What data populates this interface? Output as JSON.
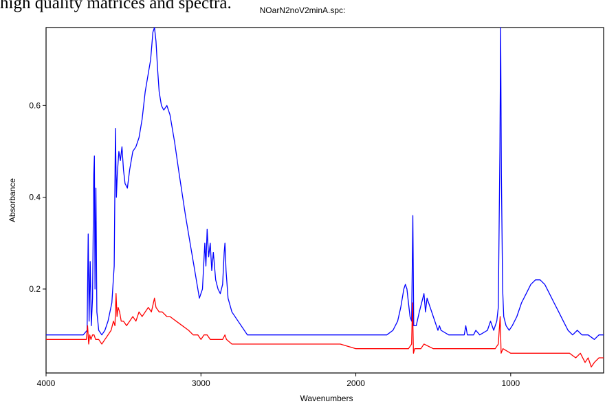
{
  "page": {
    "top_text": "high quality matrices and spectra."
  },
  "chart_data": {
    "type": "line",
    "title": "NOarN2noV2minA.spc:",
    "xlabel": "Wavenumbers",
    "ylabel": "Absorbance",
    "xlim": [
      4000,
      400
    ],
    "ylim": [
      0.017,
      0.77
    ],
    "x_ticks": [
      4000,
      3000,
      2000,
      1000
    ],
    "y_ticks": [
      0.2,
      0.4,
      0.6
    ],
    "x_tick_labels": [
      "4000",
      "3000",
      "2000",
      "1000"
    ],
    "y_tick_labels": [
      "0.2",
      "0.4",
      "0.6"
    ],
    "grid": false,
    "series": [
      {
        "color": "#0000ff",
        "points": [
          [
            4000,
            0.1
          ],
          [
            3850,
            0.1
          ],
          [
            3760,
            0.1
          ],
          [
            3735,
            0.11
          ],
          [
            3728,
            0.32
          ],
          [
            3722,
            0.13
          ],
          [
            3715,
            0.26
          ],
          [
            3708,
            0.12
          ],
          [
            3700,
            0.18
          ],
          [
            3692,
            0.45
          ],
          [
            3688,
            0.49
          ],
          [
            3684,
            0.2
          ],
          [
            3678,
            0.42
          ],
          [
            3672,
            0.15
          ],
          [
            3660,
            0.11
          ],
          [
            3640,
            0.1
          ],
          [
            3620,
            0.11
          ],
          [
            3600,
            0.13
          ],
          [
            3575,
            0.17
          ],
          [
            3560,
            0.25
          ],
          [
            3552,
            0.55
          ],
          [
            3546,
            0.4
          ],
          [
            3540,
            0.45
          ],
          [
            3530,
            0.5
          ],
          [
            3520,
            0.48
          ],
          [
            3510,
            0.51
          ],
          [
            3500,
            0.46
          ],
          [
            3490,
            0.43
          ],
          [
            3475,
            0.42
          ],
          [
            3460,
            0.46
          ],
          [
            3440,
            0.5
          ],
          [
            3420,
            0.51
          ],
          [
            3400,
            0.53
          ],
          [
            3380,
            0.57
          ],
          [
            3360,
            0.63
          ],
          [
            3340,
            0.67
          ],
          [
            3325,
            0.7
          ],
          [
            3310,
            0.76
          ],
          [
            3300,
            0.77
          ],
          [
            3290,
            0.74
          ],
          [
            3280,
            0.68
          ],
          [
            3270,
            0.63
          ],
          [
            3255,
            0.6
          ],
          [
            3240,
            0.59
          ],
          [
            3220,
            0.6
          ],
          [
            3200,
            0.58
          ],
          [
            3170,
            0.52
          ],
          [
            3140,
            0.45
          ],
          [
            3100,
            0.36
          ],
          [
            3070,
            0.3
          ],
          [
            3040,
            0.24
          ],
          [
            3010,
            0.18
          ],
          [
            2990,
            0.2
          ],
          [
            2975,
            0.3
          ],
          [
            2968,
            0.25
          ],
          [
            2960,
            0.33
          ],
          [
            2950,
            0.27
          ],
          [
            2940,
            0.3
          ],
          [
            2930,
            0.24
          ],
          [
            2920,
            0.28
          ],
          [
            2905,
            0.22
          ],
          [
            2890,
            0.2
          ],
          [
            2875,
            0.19
          ],
          [
            2860,
            0.21
          ],
          [
            2850,
            0.28
          ],
          [
            2845,
            0.3
          ],
          [
            2838,
            0.24
          ],
          [
            2825,
            0.18
          ],
          [
            2800,
            0.15
          ],
          [
            2760,
            0.13
          ],
          [
            2700,
            0.1
          ],
          [
            2600,
            0.1
          ],
          [
            2500,
            0.1
          ],
          [
            2400,
            0.1
          ],
          [
            2300,
            0.1
          ],
          [
            2200,
            0.1
          ],
          [
            2100,
            0.1
          ],
          [
            2000,
            0.1
          ],
          [
            1900,
            0.1
          ],
          [
            1800,
            0.1
          ],
          [
            1760,
            0.11
          ],
          [
            1730,
            0.13
          ],
          [
            1710,
            0.16
          ],
          [
            1690,
            0.2
          ],
          [
            1680,
            0.21
          ],
          [
            1670,
            0.2
          ],
          [
            1660,
            0.17
          ],
          [
            1650,
            0.14
          ],
          [
            1640,
            0.13
          ],
          [
            1632,
            0.36
          ],
          [
            1626,
            0.12
          ],
          [
            1610,
            0.12
          ],
          [
            1590,
            0.15
          ],
          [
            1560,
            0.19
          ],
          [
            1550,
            0.15
          ],
          [
            1540,
            0.18
          ],
          [
            1520,
            0.16
          ],
          [
            1500,
            0.14
          ],
          [
            1480,
            0.12
          ],
          [
            1470,
            0.11
          ],
          [
            1460,
            0.12
          ],
          [
            1450,
            0.11
          ],
          [
            1400,
            0.1
          ],
          [
            1300,
            0.1
          ],
          [
            1290,
            0.12
          ],
          [
            1280,
            0.1
          ],
          [
            1260,
            0.1
          ],
          [
            1240,
            0.1
          ],
          [
            1225,
            0.11
          ],
          [
            1200,
            0.1
          ],
          [
            1150,
            0.11
          ],
          [
            1130,
            0.13
          ],
          [
            1110,
            0.11
          ],
          [
            1090,
            0.13
          ],
          [
            1080,
            0.16
          ],
          [
            1070,
            0.5
          ],
          [
            1065,
            0.77
          ],
          [
            1060,
            0.45
          ],
          [
            1052,
            0.2
          ],
          [
            1045,
            0.14
          ],
          [
            1030,
            0.12
          ],
          [
            1010,
            0.11
          ],
          [
            990,
            0.12
          ],
          [
            960,
            0.14
          ],
          [
            930,
            0.17
          ],
          [
            900,
            0.19
          ],
          [
            870,
            0.21
          ],
          [
            840,
            0.22
          ],
          [
            810,
            0.22
          ],
          [
            780,
            0.21
          ],
          [
            750,
            0.19
          ],
          [
            720,
            0.17
          ],
          [
            690,
            0.15
          ],
          [
            660,
            0.13
          ],
          [
            630,
            0.11
          ],
          [
            600,
            0.1
          ],
          [
            570,
            0.11
          ],
          [
            540,
            0.1
          ],
          [
            500,
            0.1
          ],
          [
            460,
            0.09
          ],
          [
            430,
            0.1
          ],
          [
            400,
            0.1
          ]
        ]
      },
      {
        "color": "#ff0000",
        "points": [
          [
            4000,
            0.09
          ],
          [
            3850,
            0.09
          ],
          [
            3760,
            0.09
          ],
          [
            3740,
            0.09
          ],
          [
            3732,
            0.12
          ],
          [
            3725,
            0.08
          ],
          [
            3718,
            0.1
          ],
          [
            3710,
            0.09
          ],
          [
            3700,
            0.1
          ],
          [
            3690,
            0.1
          ],
          [
            3680,
            0.09
          ],
          [
            3660,
            0.09
          ],
          [
            3640,
            0.08
          ],
          [
            3620,
            0.09
          ],
          [
            3600,
            0.1
          ],
          [
            3580,
            0.11
          ],
          [
            3565,
            0.13
          ],
          [
            3555,
            0.12
          ],
          [
            3548,
            0.19
          ],
          [
            3542,
            0.14
          ],
          [
            3535,
            0.16
          ],
          [
            3525,
            0.15
          ],
          [
            3515,
            0.13
          ],
          [
            3500,
            0.13
          ],
          [
            3480,
            0.12
          ],
          [
            3460,
            0.13
          ],
          [
            3440,
            0.14
          ],
          [
            3420,
            0.13
          ],
          [
            3400,
            0.15
          ],
          [
            3380,
            0.14
          ],
          [
            3360,
            0.15
          ],
          [
            3340,
            0.16
          ],
          [
            3320,
            0.15
          ],
          [
            3300,
            0.18
          ],
          [
            3290,
            0.16
          ],
          [
            3270,
            0.15
          ],
          [
            3250,
            0.15
          ],
          [
            3220,
            0.14
          ],
          [
            3200,
            0.14
          ],
          [
            3160,
            0.13
          ],
          [
            3120,
            0.12
          ],
          [
            3080,
            0.11
          ],
          [
            3050,
            0.1
          ],
          [
            3020,
            0.1
          ],
          [
            3000,
            0.09
          ],
          [
            2980,
            0.1
          ],
          [
            2960,
            0.1
          ],
          [
            2940,
            0.09
          ],
          [
            2920,
            0.09
          ],
          [
            2900,
            0.09
          ],
          [
            2860,
            0.09
          ],
          [
            2845,
            0.1
          ],
          [
            2835,
            0.09
          ],
          [
            2800,
            0.08
          ],
          [
            2700,
            0.08
          ],
          [
            2600,
            0.08
          ],
          [
            2500,
            0.08
          ],
          [
            2400,
            0.08
          ],
          [
            2300,
            0.08
          ],
          [
            2200,
            0.08
          ],
          [
            2100,
            0.08
          ],
          [
            2000,
            0.07
          ],
          [
            1900,
            0.07
          ],
          [
            1800,
            0.07
          ],
          [
            1700,
            0.07
          ],
          [
            1660,
            0.07
          ],
          [
            1640,
            0.08
          ],
          [
            1634,
            0.17
          ],
          [
            1628,
            0.06
          ],
          [
            1620,
            0.07
          ],
          [
            1580,
            0.07
          ],
          [
            1560,
            0.08
          ],
          [
            1500,
            0.07
          ],
          [
            1400,
            0.07
          ],
          [
            1300,
            0.07
          ],
          [
            1200,
            0.07
          ],
          [
            1150,
            0.07
          ],
          [
            1100,
            0.07
          ],
          [
            1080,
            0.08
          ],
          [
            1068,
            0.14
          ],
          [
            1062,
            0.06
          ],
          [
            1050,
            0.07
          ],
          [
            1000,
            0.06
          ],
          [
            900,
            0.06
          ],
          [
            800,
            0.06
          ],
          [
            700,
            0.06
          ],
          [
            620,
            0.06
          ],
          [
            580,
            0.05
          ],
          [
            550,
            0.06
          ],
          [
            520,
            0.04
          ],
          [
            500,
            0.05
          ],
          [
            480,
            0.03
          ],
          [
            460,
            0.04
          ],
          [
            430,
            0.05
          ],
          [
            400,
            0.05
          ]
        ]
      }
    ]
  }
}
